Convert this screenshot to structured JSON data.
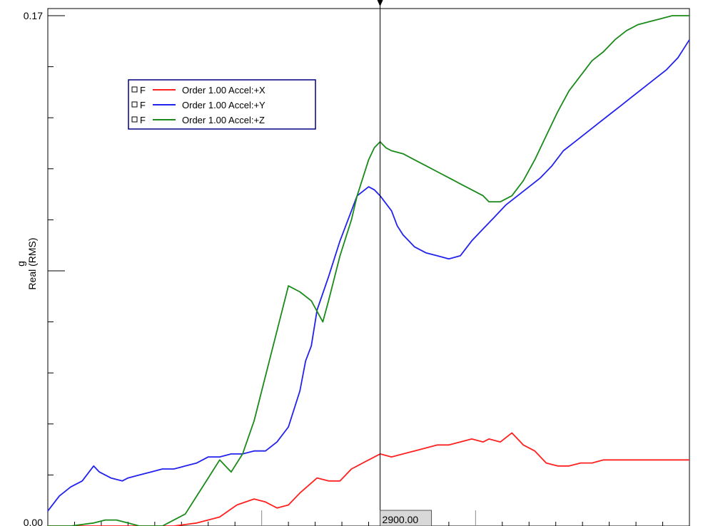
{
  "chart_data": {
    "type": "line",
    "title": "",
    "xlabel": "",
    "ylabel_unit": "g",
    "ylabel": "Real (RMS)",
    "xlim": [
      0,
      5600
    ],
    "ylim": [
      0.0,
      0.17
    ],
    "y_tick_labels": [
      "0.00",
      "0.17"
    ],
    "grid": false,
    "legend_position": "top-left",
    "cursor": {
      "x": 2900,
      "label": "2900.00"
    },
    "series": [
      {
        "name": "Order 1.00 Accel:+X",
        "prefix": "F",
        "color": "#ff2020",
        "x": [
          0,
          300,
          600,
          900,
          1100,
          1300,
          1500,
          1650,
          1800,
          1900,
          2000,
          2100,
          2200,
          2350,
          2450,
          2550,
          2650,
          2700,
          2800,
          2900,
          3000,
          3100,
          3200,
          3300,
          3400,
          3500,
          3600,
          3700,
          3800,
          3850,
          3950,
          4050,
          4150,
          4250,
          4350,
          4450,
          4550,
          4650,
          4750,
          4850,
          4950,
          5050,
          5150,
          5250,
          5350,
          5450,
          5550,
          5600
        ],
        "y": [
          0.0,
          0.0,
          0.0,
          0.0,
          0.0,
          0.001,
          0.003,
          0.007,
          0.009,
          0.008,
          0.006,
          0.007,
          0.011,
          0.016,
          0.015,
          0.015,
          0.019,
          0.02,
          0.022,
          0.024,
          0.023,
          0.024,
          0.025,
          0.026,
          0.027,
          0.027,
          0.028,
          0.029,
          0.028,
          0.029,
          0.028,
          0.031,
          0.027,
          0.025,
          0.021,
          0.02,
          0.02,
          0.021,
          0.021,
          0.022,
          0.022,
          0.022,
          0.022,
          0.022,
          0.022,
          0.022,
          0.022,
          0.022
        ]
      },
      {
        "name": "Order 1.00 Accel:+Y",
        "prefix": "F",
        "color": "#2222ee",
        "x": [
          0,
          100,
          200,
          300,
          400,
          450,
          550,
          650,
          700,
          800,
          900,
          1000,
          1100,
          1200,
          1300,
          1400,
          1500,
          1600,
          1700,
          1800,
          1900,
          2000,
          2100,
          2200,
          2250,
          2300,
          2350,
          2450,
          2550,
          2650,
          2700,
          2800,
          2850,
          2900,
          3000,
          3050,
          3100,
          3200,
          3300,
          3400,
          3500,
          3600,
          3700,
          3800,
          3900,
          4000,
          4100,
          4200,
          4300,
          4400,
          4500,
          4600,
          4700,
          4800,
          4900,
          5000,
          5100,
          5200,
          5300,
          5400,
          5500,
          5550,
          5600
        ],
        "y": [
          0.005,
          0.01,
          0.013,
          0.015,
          0.02,
          0.018,
          0.016,
          0.015,
          0.016,
          0.017,
          0.018,
          0.019,
          0.019,
          0.02,
          0.021,
          0.023,
          0.023,
          0.024,
          0.024,
          0.025,
          0.025,
          0.028,
          0.033,
          0.045,
          0.055,
          0.06,
          0.072,
          0.083,
          0.095,
          0.105,
          0.11,
          0.113,
          0.112,
          0.11,
          0.105,
          0.1,
          0.097,
          0.093,
          0.091,
          0.09,
          0.089,
          0.09,
          0.095,
          0.099,
          0.103,
          0.107,
          0.11,
          0.113,
          0.116,
          0.12,
          0.125,
          0.128,
          0.131,
          0.134,
          0.137,
          0.14,
          0.143,
          0.146,
          0.149,
          0.152,
          0.156,
          0.159,
          0.162
        ]
      },
      {
        "name": "Order 1.00 Accel:+Z",
        "prefix": "F",
        "color": "#1a8a1a",
        "x": [
          0,
          200,
          400,
          500,
          600,
          700,
          800,
          900,
          1000,
          1100,
          1200,
          1300,
          1400,
          1500,
          1600,
          1700,
          1800,
          1900,
          2000,
          2100,
          2200,
          2300,
          2400,
          2450,
          2550,
          2650,
          2700,
          2800,
          2850,
          2900,
          2950,
          3000,
          3100,
          3200,
          3300,
          3400,
          3500,
          3600,
          3700,
          3800,
          3850,
          3950,
          4050,
          4150,
          4250,
          4350,
          4450,
          4550,
          4650,
          4750,
          4850,
          4950,
          5050,
          5150,
          5250,
          5350,
          5450,
          5550,
          5600
        ],
        "y": [
          0.0,
          0.0,
          0.001,
          0.002,
          0.002,
          0.001,
          0.0,
          0.0,
          0.0,
          0.002,
          0.004,
          0.01,
          0.016,
          0.022,
          0.018,
          0.024,
          0.035,
          0.05,
          0.065,
          0.08,
          0.078,
          0.075,
          0.068,
          0.075,
          0.09,
          0.102,
          0.11,
          0.122,
          0.126,
          0.128,
          0.126,
          0.125,
          0.124,
          0.122,
          0.12,
          0.118,
          0.116,
          0.114,
          0.112,
          0.11,
          0.108,
          0.108,
          0.11,
          0.115,
          0.122,
          0.13,
          0.138,
          0.145,
          0.15,
          0.155,
          0.158,
          0.162,
          0.165,
          0.167,
          0.168,
          0.169,
          0.17,
          0.17,
          0.17
        ]
      }
    ]
  }
}
